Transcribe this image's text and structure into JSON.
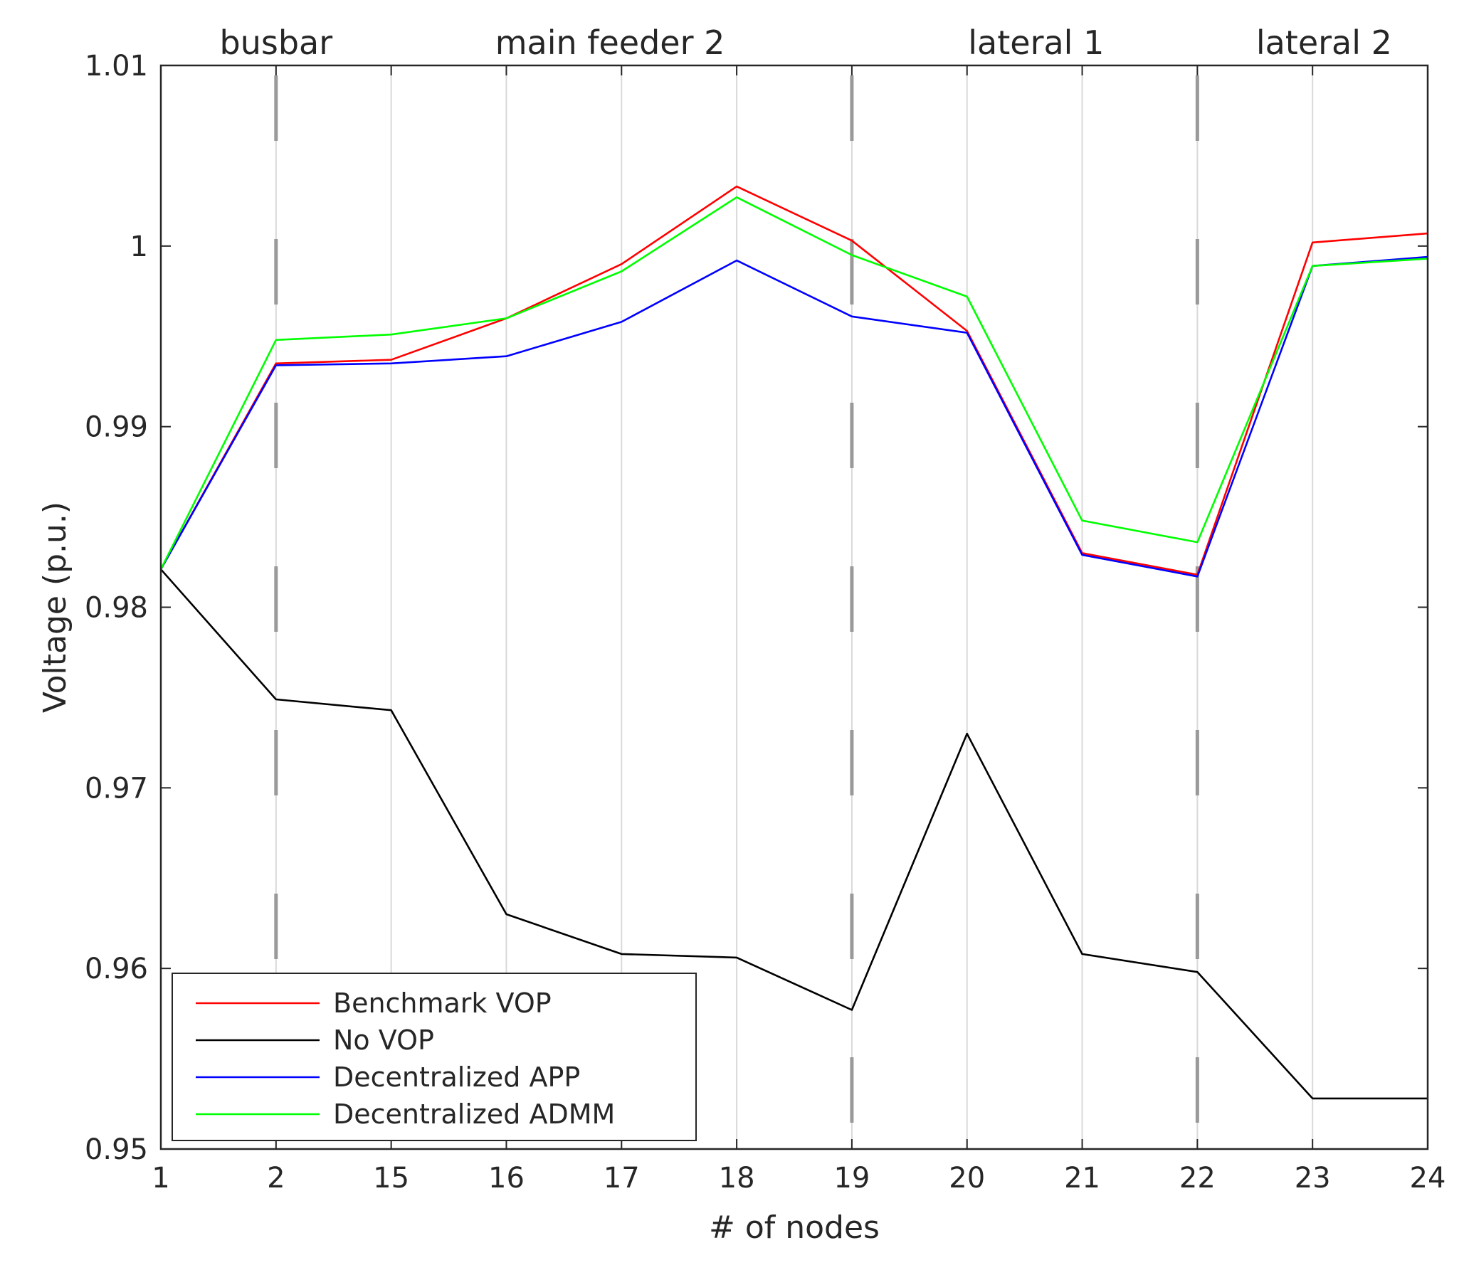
{
  "chart_data": {
    "type": "line",
    "title": "",
    "xlabel": "# of nodes",
    "ylabel": "Voltage (p.u.)",
    "x_categories": [
      "1",
      "2",
      "15",
      "16",
      "17",
      "18",
      "19",
      "20",
      "21",
      "22",
      "23",
      "24"
    ],
    "ylim": [
      0.95,
      1.01
    ],
    "y_ticks": [
      "0.95",
      "0.96",
      "0.97",
      "0.98",
      "0.99",
      "1",
      "1.01"
    ],
    "y_tick_values": [
      0.95,
      0.96,
      0.97,
      0.98,
      0.99,
      1.0,
      1.01
    ],
    "grid": "vertical",
    "regions": [
      {
        "label": "busbar",
        "center_index": 1
      },
      {
        "label": "main feeder 2",
        "center_index": 3.9
      },
      {
        "label": "lateral 1",
        "center_index": 7.6
      },
      {
        "label": "lateral 2",
        "center_index": 10.1
      }
    ],
    "region_dividers": [
      1,
      6,
      9
    ],
    "series": [
      {
        "name": "Benchmark VOP",
        "color": "#ff0000",
        "values": [
          0.9821,
          0.9935,
          0.9937,
          0.996,
          0.999,
          1.0033,
          1.0003,
          0.9953,
          0.983,
          0.9818,
          1.0002,
          1.0007
        ]
      },
      {
        "name": "No VOP",
        "color": "#000000",
        "values": [
          0.9821,
          0.9749,
          0.9743,
          0.963,
          0.9608,
          0.9606,
          0.9577,
          0.973,
          0.9608,
          0.9598,
          0.9528,
          0.9528
        ]
      },
      {
        "name": "Decentralized APP",
        "color": "#0000ff",
        "values": [
          0.9821,
          0.9934,
          0.9935,
          0.9939,
          0.9958,
          0.9992,
          0.9961,
          0.9952,
          0.9829,
          0.9817,
          0.9989,
          0.9994
        ]
      },
      {
        "name": "Decentralized ADMM",
        "color": "#00ff00",
        "values": [
          0.9821,
          0.9948,
          0.9951,
          0.996,
          0.9986,
          1.0027,
          0.9995,
          0.9972,
          0.9848,
          0.9836,
          0.9989,
          0.9993
        ]
      }
    ],
    "legend_position": "bottom-left"
  }
}
